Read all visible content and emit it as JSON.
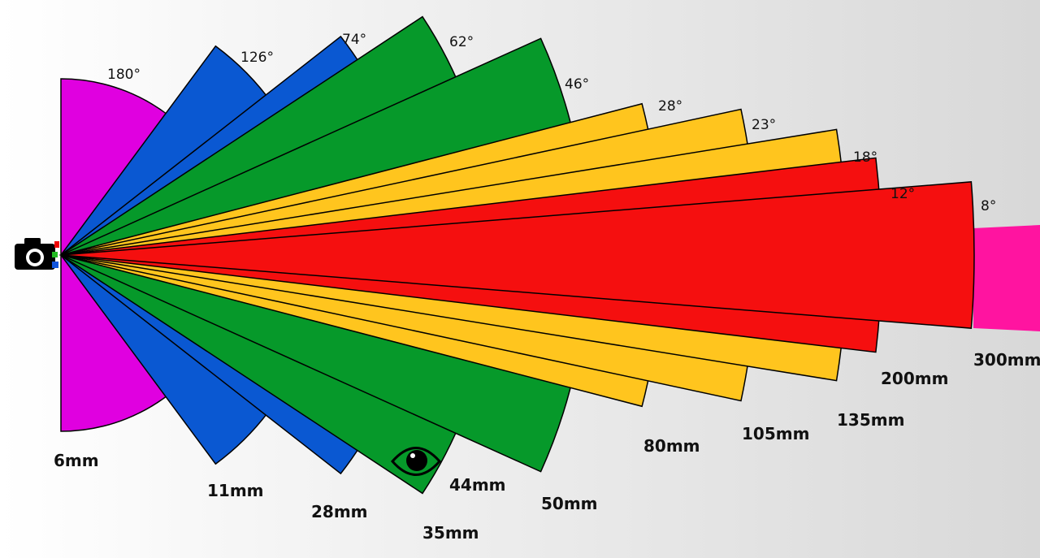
{
  "title": null,
  "wedges": [
    {
      "angle": "180°",
      "focal": "6mm",
      "color": "#e000e0"
    },
    {
      "angle": "126°",
      "focal": "11mm",
      "color": "#0a58d2"
    },
    {
      "angle": "74°",
      "focal": "28mm",
      "color": "#0a58d2"
    },
    {
      "angle": "62°",
      "focal": "35mm",
      "color": "#06992a"
    },
    {
      "angle": "46°",
      "focal": "50mm",
      "color": "#06992a"
    },
    {
      "angle": "28°",
      "focal": "80mm",
      "color": "#ffc51e"
    },
    {
      "angle": "23°",
      "focal": "105mm",
      "color": "#ffc51e"
    },
    {
      "angle": "18°",
      "focal": "135mm",
      "color": "#ffc51e"
    },
    {
      "angle": "12°",
      "focal": "200mm",
      "color": "#f50f0f"
    },
    {
      "angle": "8°",
      "focal": "300mm",
      "color": "#f50f0f"
    }
  ],
  "eye_label": "44mm"
}
